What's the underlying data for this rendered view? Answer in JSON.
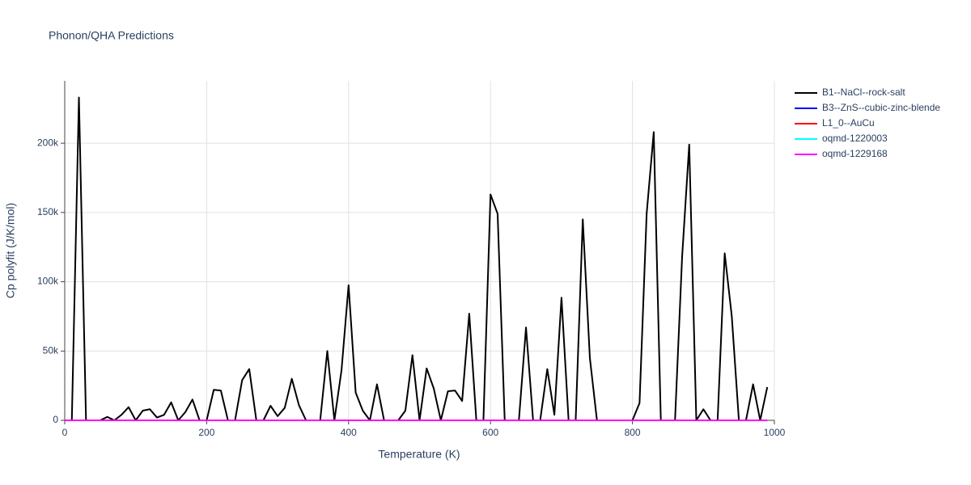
{
  "chart_data": {
    "type": "line",
    "title": "Phonon/QHA Predictions",
    "xlabel": "Temperature (K)",
    "ylabel": "Cp polyfit (J/K/mol)",
    "x": [
      0,
      10,
      20,
      30,
      40,
      50,
      60,
      70,
      80,
      90,
      100,
      110,
      120,
      130,
      140,
      150,
      160,
      170,
      180,
      190,
      200,
      210,
      220,
      230,
      240,
      250,
      260,
      270,
      280,
      290,
      300,
      310,
      320,
      330,
      340,
      350,
      360,
      370,
      380,
      390,
      400,
      410,
      420,
      430,
      440,
      450,
      460,
      470,
      480,
      490,
      500,
      510,
      520,
      530,
      540,
      550,
      560,
      570,
      580,
      590,
      600,
      610,
      620,
      630,
      640,
      650,
      660,
      670,
      680,
      690,
      700,
      710,
      720,
      730,
      740,
      750,
      760,
      770,
      780,
      790,
      800,
      810,
      820,
      830,
      840,
      850,
      860,
      870,
      880,
      890,
      900,
      910,
      920,
      930,
      940,
      950,
      960,
      970,
      980,
      990
    ],
    "series": [
      {
        "name": "B1--NaCl--rock-salt",
        "color": "#000000",
        "values": [
          0,
          0,
          233000,
          0,
          0,
          0,
          2500,
          0,
          4000,
          9500,
          0,
          7000,
          8000,
          2000,
          4000,
          13000,
          0,
          6000,
          15000,
          0,
          0,
          22000,
          21500,
          0,
          0,
          29000,
          37000,
          0,
          0,
          10500,
          3000,
          9000,
          30000,
          11000,
          0,
          0,
          0,
          50000,
          0,
          36000,
          97500,
          20000,
          7000,
          0,
          26000,
          0,
          0,
          0,
          7000,
          47000,
          0,
          37500,
          23000,
          0,
          21000,
          21500,
          14000,
          77000,
          0,
          0,
          163000,
          149000,
          0,
          0,
          0,
          67000,
          0,
          0,
          37000,
          4000,
          88500,
          0,
          0,
          145000,
          45000,
          0,
          0,
          0,
          0,
          0,
          0,
          12500,
          149000,
          208000,
          0,
          0,
          0,
          118000,
          199000,
          0,
          8000,
          0,
          0,
          120500,
          75000,
          0,
          0,
          26000,
          0,
          24000
        ]
      },
      {
        "name": "B3--ZnS--cubic-zinc-blende",
        "color": "#0000ff",
        "values": [
          0,
          0,
          0,
          0,
          0,
          0,
          0,
          0,
          0,
          0,
          0,
          0,
          0,
          0,
          0,
          0,
          0,
          0,
          0,
          0,
          0,
          0,
          0,
          0,
          0,
          0,
          0,
          0,
          0,
          0,
          0,
          0,
          0,
          0,
          0,
          0,
          0,
          0,
          0,
          0,
          0,
          0,
          0,
          0,
          0,
          0,
          0,
          0,
          0,
          0,
          0,
          0,
          0,
          0,
          0,
          0,
          0,
          0,
          0,
          0,
          0,
          0,
          0,
          0,
          0,
          0,
          0,
          0,
          0,
          0,
          0,
          0,
          0,
          0,
          0,
          0,
          0,
          0,
          0,
          0,
          0,
          0,
          0,
          0,
          0,
          0,
          0,
          0,
          0,
          0,
          0,
          0,
          0,
          0,
          0,
          0,
          0,
          0,
          0,
          0
        ]
      },
      {
        "name": "L1_0--AuCu",
        "color": "#ff0000",
        "values": [
          0,
          0,
          0,
          0,
          0,
          0,
          0,
          0,
          0,
          0,
          0,
          0,
          0,
          0,
          0,
          0,
          0,
          0,
          0,
          0,
          0,
          0,
          0,
          0,
          0,
          0,
          0,
          0,
          0,
          0,
          0,
          0,
          0,
          0,
          0,
          0,
          0,
          0,
          0,
          0,
          0,
          0,
          0,
          0,
          0,
          0,
          0,
          0,
          0,
          0,
          0,
          0,
          0,
          0,
          0,
          0,
          0,
          0,
          0,
          0,
          0,
          0,
          0,
          0,
          0,
          0,
          0,
          0,
          0,
          0,
          0,
          0,
          0,
          0,
          0,
          0,
          0,
          0,
          0,
          0,
          0,
          0,
          0,
          0,
          0,
          0,
          0,
          0,
          0,
          0,
          0,
          0,
          0,
          0,
          0,
          0,
          0,
          0,
          0,
          0
        ]
      },
      {
        "name": "oqmd-1220003",
        "color": "#00ffff",
        "values": [
          0,
          0,
          0,
          0,
          0,
          0,
          0,
          0,
          0,
          0,
          0,
          0,
          0,
          0,
          0,
          0,
          0,
          0,
          0,
          0,
          0,
          0,
          0,
          0,
          0,
          0,
          0,
          0,
          0,
          0,
          0,
          0,
          0,
          0,
          0,
          0,
          0,
          0,
          0,
          0,
          0,
          0,
          0,
          0,
          0,
          0,
          0,
          0,
          0,
          0,
          0,
          0,
          0,
          0,
          0,
          0,
          0,
          0,
          0,
          0,
          0,
          0,
          0,
          0,
          0,
          0,
          0,
          0,
          0,
          0,
          0,
          0,
          0,
          0,
          0,
          0,
          0,
          0,
          0,
          0,
          0,
          0,
          0,
          0,
          0,
          0,
          0,
          0,
          0,
          0,
          0,
          0,
          0,
          0,
          0,
          0,
          0,
          0,
          0,
          0
        ]
      },
      {
        "name": "oqmd-1229168",
        "color": "#ff00ff",
        "values": [
          0,
          0,
          0,
          0,
          0,
          0,
          0,
          0,
          0,
          0,
          0,
          0,
          0,
          0,
          0,
          0,
          0,
          0,
          0,
          0,
          0,
          0,
          0,
          0,
          0,
          0,
          0,
          0,
          0,
          0,
          0,
          0,
          0,
          0,
          0,
          0,
          0,
          0,
          0,
          0,
          0,
          0,
          0,
          0,
          0,
          0,
          0,
          0,
          0,
          0,
          0,
          0,
          0,
          0,
          0,
          0,
          0,
          0,
          0,
          0,
          0,
          0,
          0,
          0,
          0,
          0,
          0,
          0,
          0,
          0,
          0,
          0,
          0,
          0,
          0,
          0,
          0,
          0,
          0,
          0,
          0,
          0,
          0,
          0,
          0,
          0,
          0,
          0,
          0,
          0,
          0,
          0,
          0,
          0,
          0,
          0,
          0,
          0,
          0,
          0
        ]
      }
    ],
    "xlim": [
      0,
      1000
    ],
    "xticks": [
      0,
      200,
      400,
      600,
      800,
      1000
    ],
    "ylim": [
      0,
      245000
    ],
    "yticks": [
      0,
      {
        "value": 50000,
        "label": "50k"
      },
      {
        "value": 100000,
        "label": "100k"
      },
      {
        "value": 150000,
        "label": "150k"
      },
      {
        "value": 200000,
        "label": "200k"
      }
    ],
    "grid": true
  }
}
